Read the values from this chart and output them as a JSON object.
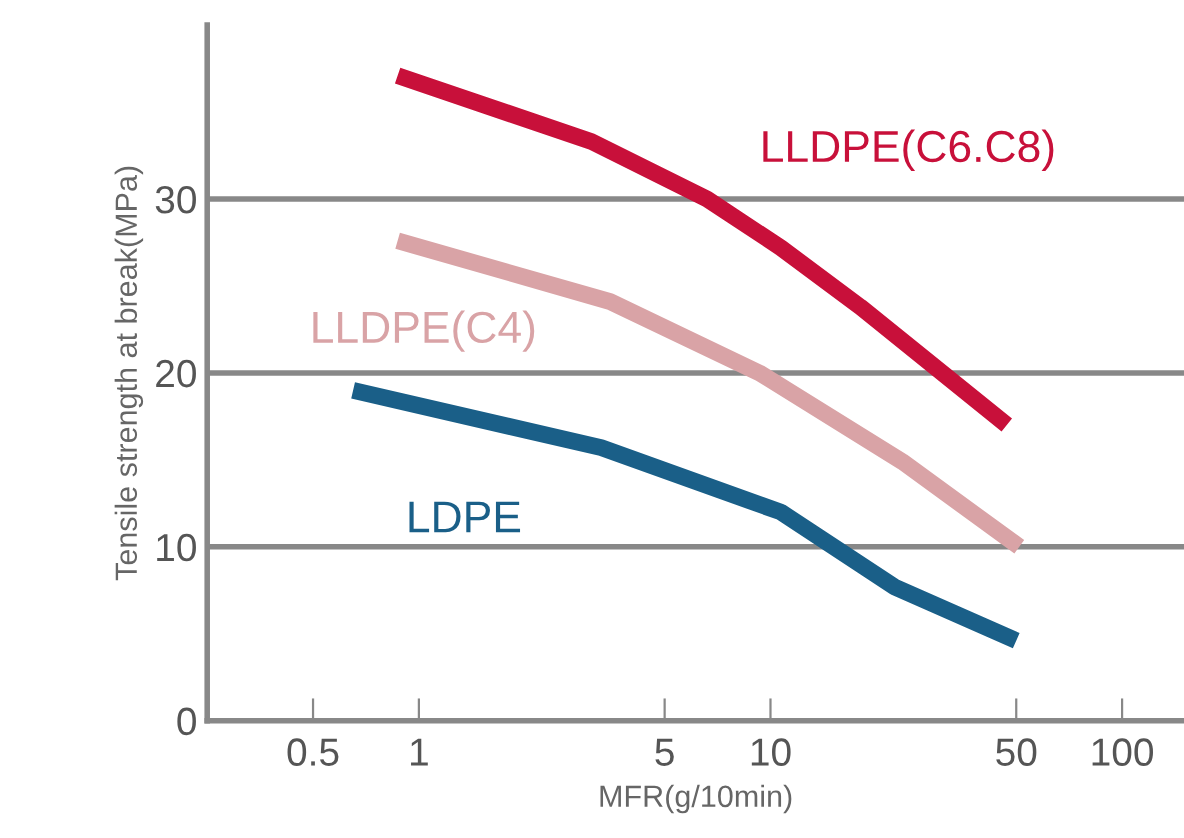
{
  "chart_data": {
    "type": "line",
    "xlabel": "MFR(g/10min)",
    "ylabel": "Tensile strength at break(MPa)",
    "log": "x",
    "xlim": [
      0.25,
      150
    ],
    "ylim": [
      0,
      40
    ],
    "xticks": [
      0.5,
      1,
      5,
      10,
      50,
      100
    ],
    "yticks": [
      0,
      10,
      20,
      30
    ],
    "grid": "y",
    "legend": false,
    "marker": "none",
    "line_style": "solid",
    "series": [
      {
        "name": "LLDPE(C6.C8)",
        "color": "#c8103a",
        "x": [
          0.87,
          3.1,
          6.6,
          10.7,
          18,
          47
        ],
        "values": [
          37.1,
          33.3,
          30,
          27.2,
          23.8,
          17.0
        ]
      },
      {
        "name": "LLDPE(C4)",
        "color": "#d9a3a6",
        "x": [
          0.87,
          3.5,
          9.3,
          23.7,
          51
        ],
        "values": [
          27.6,
          24.1,
          20.0,
          14.9,
          10.0
        ]
      },
      {
        "name": "LDPE",
        "color": "#1a5f88",
        "x": [
          0.65,
          3.3,
          10.7,
          22.5,
          50
        ],
        "values": [
          19.0,
          15.7,
          12.0,
          7.7,
          4.6
        ]
      }
    ]
  }
}
